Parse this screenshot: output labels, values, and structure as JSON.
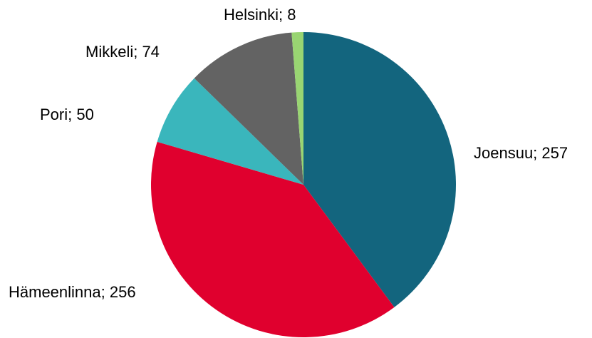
{
  "chart_data": {
    "type": "pie",
    "categories": [
      "Joensuu",
      "Hämeenlinna",
      "Pori",
      "Mikkeli",
      "Helsinki"
    ],
    "values": [
      257,
      256,
      50,
      74,
      8
    ],
    "labels": [
      "Joensuu; 257",
      "Hämeenlinna; 256",
      "Pori; 50",
      "Mikkeli; 74",
      "Helsinki; 8"
    ],
    "colors": [
      "#13657e",
      "#e0002e",
      "#3ab6bc",
      "#636363",
      "#99d572"
    ],
    "start_angle_deg": 0,
    "direction": "clockwise",
    "legend": "none"
  }
}
